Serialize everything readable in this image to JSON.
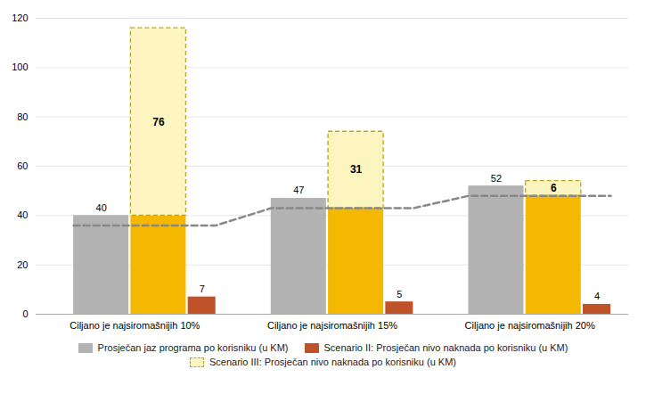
{
  "chart_data": {
    "type": "bar",
    "title": "",
    "categories": [
      "Ciljano je najsiromašnijih 10%",
      "Ciljano je najsiromašnijih 15%",
      "Ciljano je najsiromašnijih 20%"
    ],
    "series": [
      {
        "name": "Prosječan jaz programa po korisniku (u KM)",
        "color": "#b3b3b3",
        "values": [
          40,
          47,
          52
        ]
      },
      {
        "name": "Scenario II: Prosječan nivo naknada po korisniku (u KM)",
        "color": "#c0522a",
        "values": [
          7,
          5,
          4
        ]
      },
      {
        "name": "Scenario III: Prosječan nivo naknada po korisniku (u KM)",
        "color": "#fdf5c0",
        "line_style": "dashed",
        "edge_color": "#b8a820",
        "values": [
          76,
          31,
          6
        ],
        "bottom": [
          40,
          43,
          48
        ],
        "bottom_color": "#f5b800"
      },
      {
        "type": "line",
        "color": "#888888",
        "line_style": "dashed",
        "values": [
          36,
          43,
          48
        ]
      }
    ],
    "ylim": [
      0,
      120
    ],
    "yticks": [
      0,
      20,
      40,
      60,
      80,
      100,
      120
    ],
    "grid": true,
    "legend": "bottom",
    "data_labels": true
  }
}
